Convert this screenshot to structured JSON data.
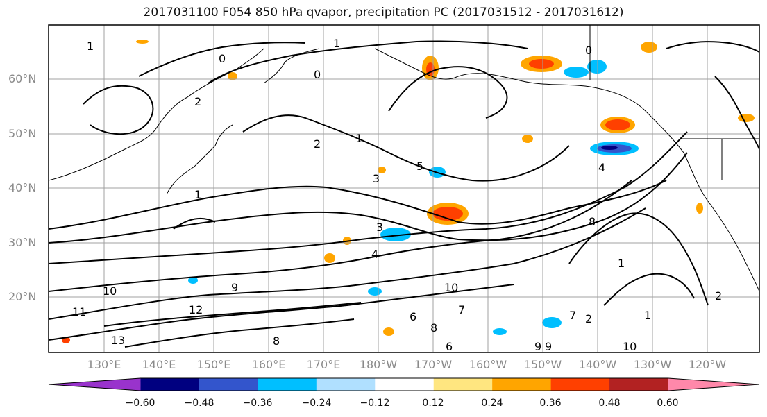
{
  "title": "2017031100 F054 850 hPa qvapor, precipitation PC (2017031512 - 2017031612)",
  "lat_labels": [
    "60°N",
    "50°N",
    "40°N",
    "30°N",
    "20°N"
  ],
  "lon_labels": [
    "130°E",
    "140°E",
    "150°E",
    "160°E",
    "170°E",
    "180°W",
    "170°W",
    "160°W",
    "150°W",
    "140°W",
    "130°W",
    "120°W"
  ],
  "colorbar": {
    "ticks": [
      "−0.60",
      "−0.48",
      "−0.36",
      "−0.24",
      "−0.12",
      "0.12",
      "0.24",
      "0.36",
      "0.48",
      "0.60"
    ],
    "colors": [
      "#9933cc",
      "#000080",
      "#3355cc",
      "#00bfff",
      "#b0e0ff",
      "#ffffff",
      "#ffe680",
      "#ffa500",
      "#ff4000",
      "#b22222",
      "#ff88aa"
    ]
  },
  "contour_labels": [
    "1",
    "0",
    "2",
    "1",
    "0",
    "2",
    "3",
    "1",
    "4",
    "5",
    "3",
    "6",
    "7",
    "8",
    "9",
    "10",
    "11",
    "12",
    "13",
    "9",
    "10",
    "6",
    "7",
    "8",
    "9",
    "10",
    "2",
    "1",
    "4",
    "8",
    "1",
    "2",
    "1",
    "0"
  ]
}
